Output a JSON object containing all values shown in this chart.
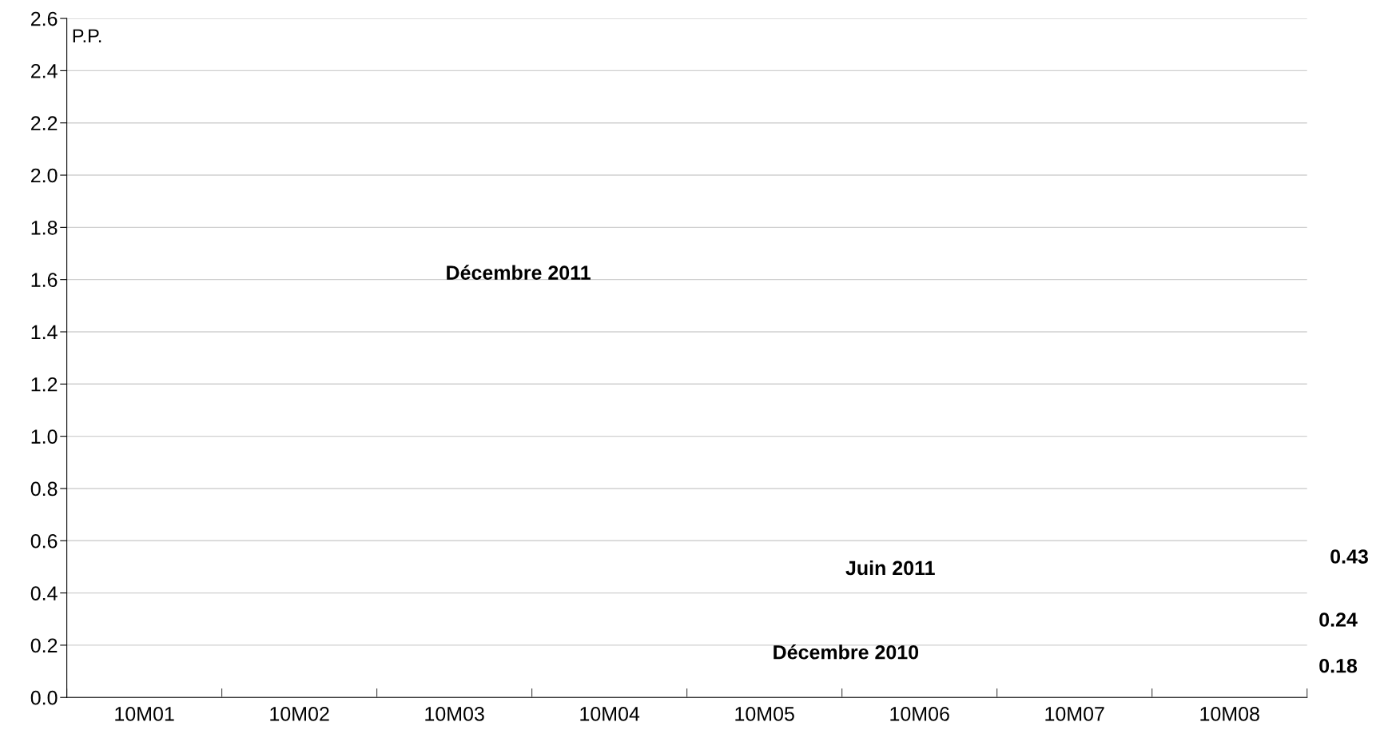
{
  "chart_data": {
    "type": "line",
    "ylabel": "P.P.",
    "categories": [
      "10M01",
      "10M02",
      "10M03",
      "10M04",
      "10M05",
      "10M06",
      "10M07",
      "10M08"
    ],
    "ylim": [
      0,
      2.6
    ],
    "yticks": [
      {
        "value": 0,
        "label": "0.0"
      },
      0.2,
      0.4,
      0.6,
      0.8,
      {
        "value": 1,
        "label": "1.0"
      },
      1.2,
      1.4,
      1.6,
      1.8,
      {
        "value": 2,
        "label": "2.0"
      },
      2.2,
      2.4,
      2.6
    ],
    "grid": "y",
    "annotations": [
      "Décembre 2011",
      "Juin 2011",
      "Décembre 2010",
      "0.43",
      "0.24",
      "0.18"
    ]
  }
}
